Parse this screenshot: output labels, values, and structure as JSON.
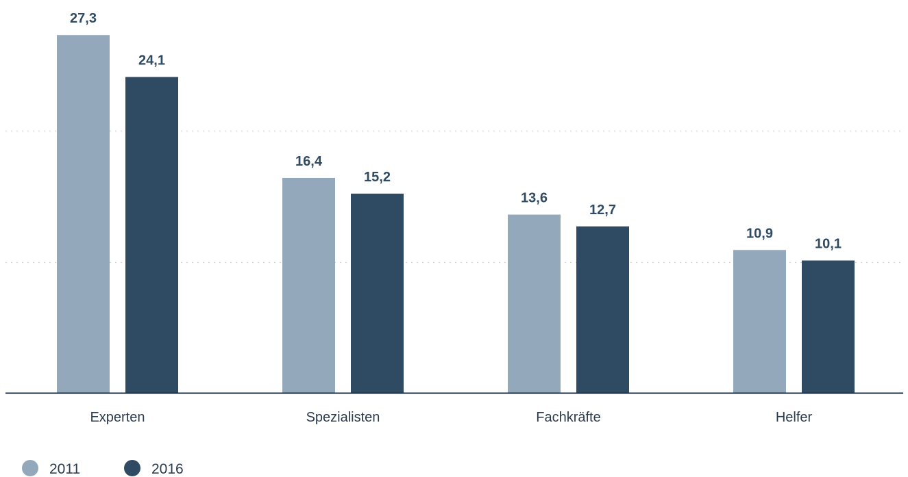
{
  "chart_data": {
    "type": "bar",
    "categories": [
      "Experten",
      "Spezialisten",
      "Fachkräfte",
      "Helfer"
    ],
    "series": [
      {
        "name": "2011",
        "color": "#94a8bc",
        "values": [
          27.3,
          16.4,
          13.6,
          10.9
        ],
        "labels": [
          "27,3",
          "16,4",
          "13,6",
          "10,9"
        ]
      },
      {
        "name": "2016",
        "color": "#2f4a63",
        "values": [
          24.1,
          15.2,
          12.7,
          10.1
        ],
        "labels": [
          "24,1",
          "15,2",
          "12,7",
          "10,1"
        ]
      }
    ],
    "ylim": [
      0,
      30
    ],
    "grid": true,
    "gridlines": [
      10,
      20
    ],
    "legend_position": "bottom-left",
    "title": "",
    "xlabel": "",
    "ylabel": ""
  }
}
